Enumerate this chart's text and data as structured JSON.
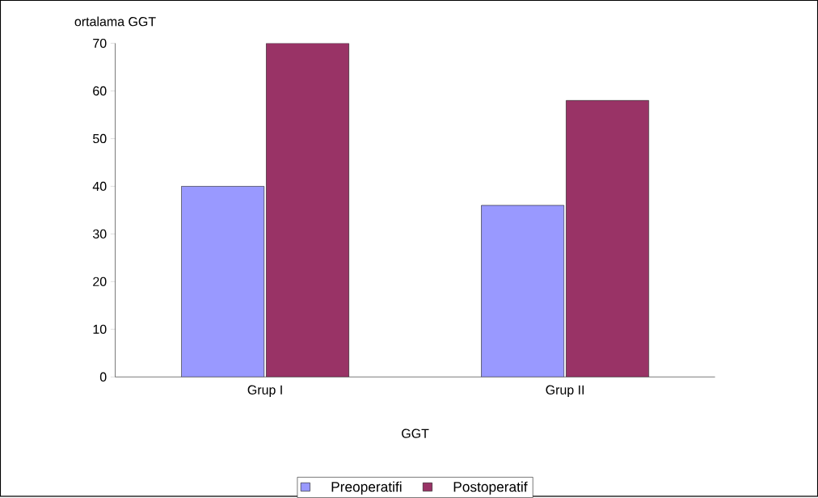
{
  "chart_data": {
    "type": "bar",
    "ylabel": "ortalama GGT",
    "xlabel": "GGT",
    "categories": [
      "Grup I",
      "Grup II"
    ],
    "series": [
      {
        "name": "Preoperatifi",
        "color": "#9999ff",
        "values": [
          40,
          36
        ]
      },
      {
        "name": "Postoperatif",
        "color": "#993366",
        "values": [
          70,
          58
        ]
      }
    ],
    "ylim": [
      0,
      70
    ],
    "yticks": [
      0,
      10,
      20,
      30,
      40,
      50,
      60,
      70
    ],
    "grid": false,
    "legend": "bottom"
  }
}
